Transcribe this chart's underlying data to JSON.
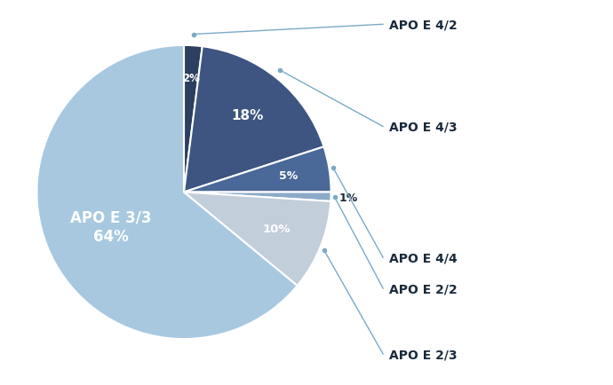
{
  "labels": [
    "APO E 4/2",
    "APO E 4/3",
    "APO E 4/4",
    "APO E 2/2",
    "APO E 2/3",
    "APO E 3/3"
  ],
  "values": [
    2,
    18,
    5,
    1,
    10,
    64
  ],
  "colors": [
    "#2d3f60",
    "#3d5580",
    "#4a6898",
    "#8aaac8",
    "#c2ceda",
    "#a8c8e0"
  ],
  "startangle": 90,
  "bg_color": "#ffffff",
  "label_color": "#1a2a3a",
  "line_color": "#7aaac8",
  "inside_pct_color": "white"
}
